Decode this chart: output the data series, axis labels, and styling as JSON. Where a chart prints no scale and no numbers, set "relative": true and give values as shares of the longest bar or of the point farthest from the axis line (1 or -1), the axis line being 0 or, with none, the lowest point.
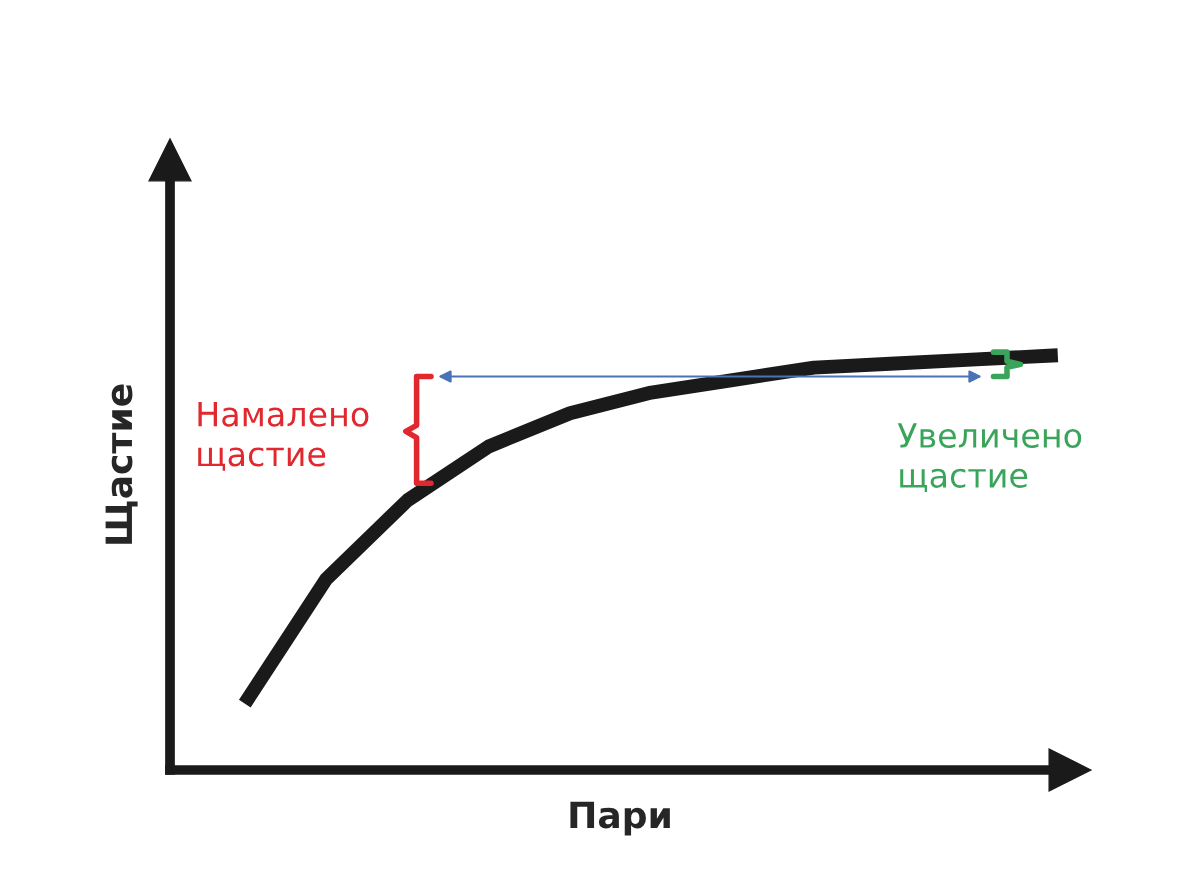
{
  "chart_data": {
    "type": "line",
    "relative": true,
    "xlabel": "Пари",
    "ylabel": "Щастие",
    "categories": [
      null,
      null,
      null,
      null,
      null,
      null,
      null,
      null,
      null,
      null,
      null
    ],
    "series": [
      {
        "color": "#1a1a1a",
        "values": [
          0.16,
          0.46,
          0.65,
          0.78,
          0.86,
          0.91,
          0.94,
          0.97,
          0.98,
          0.99,
          1.0
        ]
      }
    ],
    "annotations": [
      "Намалено щастие",
      "Увеличено щастие"
    ],
    "grid": false,
    "legend": false,
    "tick_labels": false,
    "marker": "none",
    "line_style": "solid"
  }
}
